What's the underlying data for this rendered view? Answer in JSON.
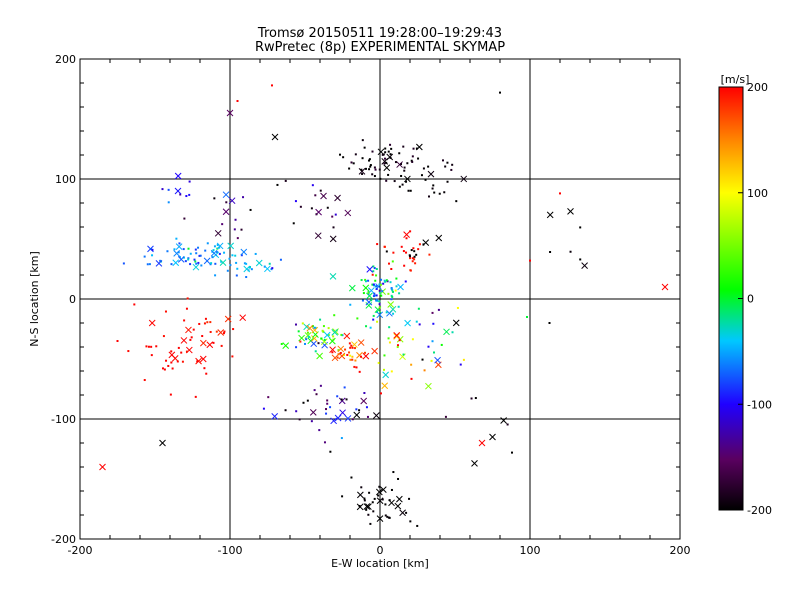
{
  "chart_data": {
    "type": "scatter",
    "title": "Tromsø 20150511 19:28:00–19:29:43",
    "subtitle": "RwPretec (8p) EXPERIMENTAL SKYMAP",
    "xlabel": "E-W location [km]",
    "ylabel": "N-S location [km]",
    "xlim": [
      -200,
      200
    ],
    "ylim": [
      -200,
      200
    ],
    "xticks": [
      "-200",
      "-100",
      "0",
      "100",
      "200"
    ],
    "yticks": [
      "-200",
      "-100",
      "0",
      "100",
      "200"
    ],
    "grid_km": [
      -100,
      0,
      100
    ],
    "colorbar": {
      "label": "[m/s]",
      "range": [
        -200,
        200
      ],
      "ticks": [
        "200",
        "100",
        "0",
        "-100",
        "-200"
      ],
      "colormap": "rainbow (black → purple → blue → cyan → green → yellow → red)"
    },
    "markers": {
      "small_dot": "point",
      "cross": "x"
    },
    "clusters": [
      {
        "x": 5,
        "y": 115,
        "n": 60,
        "sx": 14,
        "sy": 8,
        "v": -200,
        "vs": 15
      },
      {
        "x": 30,
        "y": 100,
        "n": 25,
        "sx": 12,
        "sy": 8,
        "v": -200,
        "vs": 10
      },
      {
        "x": 0,
        "y": 5,
        "n": 90,
        "sx": 9,
        "sy": 12,
        "v": -30,
        "vs": 40
      },
      {
        "x": 15,
        "y": 35,
        "n": 25,
        "sx": 10,
        "sy": 8,
        "v": 195,
        "vs": 10
      },
      {
        "x": 25,
        "y": 40,
        "n": 10,
        "sx": 10,
        "sy": 6,
        "v": -200,
        "vs": 5
      },
      {
        "x": -125,
        "y": 35,
        "n": 70,
        "sx": 18,
        "sy": 6,
        "v": -60,
        "vs": 20
      },
      {
        "x": -90,
        "y": 28,
        "n": 20,
        "sx": 12,
        "sy": 4,
        "v": -45,
        "vs": 15
      },
      {
        "x": -140,
        "y": -45,
        "n": 40,
        "sx": 20,
        "sy": 20,
        "v": 200,
        "vs": 5
      },
      {
        "x": -115,
        "y": -25,
        "n": 20,
        "sx": 10,
        "sy": 10,
        "v": 195,
        "vs": 10
      },
      {
        "x": -40,
        "y": -30,
        "n": 50,
        "sx": 12,
        "sy": 6,
        "v": 20,
        "vs": 60
      },
      {
        "x": -20,
        "y": -45,
        "n": 30,
        "sx": 8,
        "sy": 6,
        "v": 180,
        "vs": 30
      },
      {
        "x": 10,
        "y": -45,
        "n": 30,
        "sx": 15,
        "sy": 15,
        "v": 100,
        "vs": 90
      },
      {
        "x": -30,
        "y": -95,
        "n": 40,
        "sx": 20,
        "sy": 10,
        "v": -140,
        "vs": 60
      },
      {
        "x": 0,
        "y": -170,
        "n": 40,
        "sx": 12,
        "sy": 12,
        "v": -200,
        "vs": 5
      },
      {
        "x": -140,
        "y": 85,
        "n": 8,
        "sx": 8,
        "sy": 6,
        "v": -80,
        "vs": 30
      },
      {
        "x": -100,
        "y": 70,
        "n": 15,
        "sx": 15,
        "sy": 15,
        "v": -150,
        "vs": 50
      },
      {
        "x": -40,
        "y": 70,
        "n": 20,
        "sx": 20,
        "sy": 15,
        "v": -170,
        "vs": 40
      },
      {
        "x": 40,
        "y": -30,
        "n": 15,
        "sx": 10,
        "sy": 15,
        "v": -100,
        "vs": 100
      },
      {
        "x": 130,
        "y": 50,
        "n": 6,
        "sx": 12,
        "sy": 15,
        "v": -200,
        "vs": 10
      },
      {
        "x": 70,
        "y": -105,
        "n": 5,
        "sx": 12,
        "sy": 15,
        "v": -200,
        "vs": 30
      }
    ],
    "points": [
      {
        "x": -100,
        "y": 155,
        "v": -150,
        "m": "x"
      },
      {
        "x": -95,
        "y": 165,
        "v": 200,
        "m": "."
      },
      {
        "x": -72,
        "y": 178,
        "v": 200,
        "m": "."
      },
      {
        "x": -70,
        "y": 135,
        "v": -200,
        "m": "x"
      },
      {
        "x": 80,
        "y": 172,
        "v": -200,
        "m": "."
      },
      {
        "x": 190,
        "y": 10,
        "v": 200,
        "m": "x"
      },
      {
        "x": -185,
        "y": -140,
        "v": 200,
        "m": "x"
      },
      {
        "x": -145,
        "y": -120,
        "v": -200,
        "m": "x"
      },
      {
        "x": 120,
        "y": 88,
        "v": 200,
        "m": "."
      },
      {
        "x": 127,
        "y": 73,
        "v": -200,
        "m": "x"
      },
      {
        "x": 100,
        "y": 32,
        "v": 200,
        "m": "."
      },
      {
        "x": 98,
        "y": -15,
        "v": 0,
        "m": "."
      },
      {
        "x": 113,
        "y": -20,
        "v": -200,
        "m": "."
      },
      {
        "x": 75,
        "y": -115,
        "v": -200,
        "m": "x"
      },
      {
        "x": 68,
        "y": -120,
        "v": 200,
        "m": "x"
      },
      {
        "x": 63,
        "y": -137,
        "v": -200,
        "m": "x"
      },
      {
        "x": 88,
        "y": -128,
        "v": -200,
        "m": "."
      },
      {
        "x": -175,
        "y": -35,
        "v": 200,
        "m": "."
      },
      {
        "x": 0,
        "y": -183,
        "v": -200,
        "m": "x"
      }
    ]
  }
}
